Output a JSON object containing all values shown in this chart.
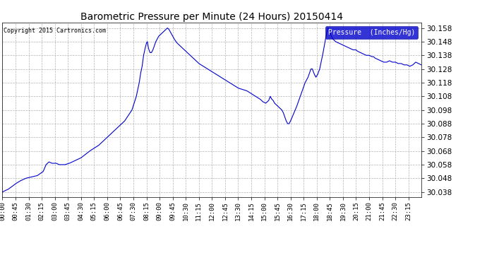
{
  "title": "Barometric Pressure per Minute (24 Hours) 20150414",
  "copyright": "Copyright 2015 Cartronics.com",
  "legend_label": "Pressure  (Inches/Hg)",
  "line_color": "#0000cc",
  "bg_color": "#ffffff",
  "plot_bg_color": "#ffffff",
  "grid_color": "#aaaaaa",
  "ylim": [
    30.034,
    30.162
  ],
  "yticks": [
    30.038,
    30.048,
    30.058,
    30.068,
    30.078,
    30.088,
    30.098,
    30.108,
    30.118,
    30.128,
    30.138,
    30.148,
    30.158
  ],
  "xtick_labels": [
    "00:00",
    "00:45",
    "01:30",
    "02:15",
    "03:00",
    "03:45",
    "04:30",
    "05:15",
    "06:00",
    "06:45",
    "07:30",
    "08:15",
    "09:00",
    "09:45",
    "10:30",
    "11:15",
    "12:00",
    "12:45",
    "13:30",
    "14:15",
    "15:00",
    "15:45",
    "16:30",
    "17:15",
    "18:00",
    "18:45",
    "19:30",
    "20:15",
    "21:00",
    "21:45",
    "22:30",
    "23:15"
  ],
  "keypoints": [
    [
      0,
      30.038
    ],
    [
      20,
      30.04
    ],
    [
      45,
      30.044
    ],
    [
      60,
      30.046
    ],
    [
      80,
      30.048
    ],
    [
      100,
      30.049
    ],
    [
      120,
      30.05
    ],
    [
      140,
      30.053
    ],
    [
      150,
      30.058
    ],
    [
      160,
      30.06
    ],
    [
      170,
      30.059
    ],
    [
      185,
      30.059
    ],
    [
      195,
      30.058
    ],
    [
      205,
      30.058
    ],
    [
      215,
      30.058
    ],
    [
      230,
      30.059
    ],
    [
      250,
      30.061
    ],
    [
      270,
      30.063
    ],
    [
      300,
      30.068
    ],
    [
      330,
      30.072
    ],
    [
      360,
      30.078
    ],
    [
      390,
      30.084
    ],
    [
      420,
      30.09
    ],
    [
      445,
      30.098
    ],
    [
      460,
      30.108
    ],
    [
      470,
      30.118
    ],
    [
      475,
      30.125
    ],
    [
      480,
      30.13
    ],
    [
      485,
      30.138
    ],
    [
      490,
      30.143
    ],
    [
      495,
      30.147
    ],
    [
      498,
      30.148
    ],
    [
      502,
      30.143
    ],
    [
      507,
      30.14
    ],
    [
      512,
      30.14
    ],
    [
      517,
      30.142
    ],
    [
      522,
      30.145
    ],
    [
      527,
      30.148
    ],
    [
      532,
      30.15
    ],
    [
      537,
      30.152
    ],
    [
      542,
      30.153
    ],
    [
      547,
      30.154
    ],
    [
      552,
      30.155
    ],
    [
      557,
      30.156
    ],
    [
      562,
      30.157
    ],
    [
      567,
      30.158
    ],
    [
      572,
      30.157
    ],
    [
      580,
      30.154
    ],
    [
      590,
      30.15
    ],
    [
      600,
      30.147
    ],
    [
      610,
      30.145
    ],
    [
      620,
      30.143
    ],
    [
      630,
      30.141
    ],
    [
      645,
      30.138
    ],
    [
      660,
      30.135
    ],
    [
      675,
      30.132
    ],
    [
      690,
      30.13
    ],
    [
      705,
      30.128
    ],
    [
      720,
      30.126
    ],
    [
      735,
      30.124
    ],
    [
      750,
      30.122
    ],
    [
      765,
      30.12
    ],
    [
      780,
      30.118
    ],
    [
      795,
      30.116
    ],
    [
      810,
      30.114
    ],
    [
      825,
      30.113
    ],
    [
      840,
      30.112
    ],
    [
      855,
      30.11
    ],
    [
      870,
      30.108
    ],
    [
      885,
      30.106
    ],
    [
      895,
      30.104
    ],
    [
      905,
      30.103
    ],
    [
      915,
      30.105
    ],
    [
      920,
      30.108
    ],
    [
      925,
      30.106
    ],
    [
      930,
      30.105
    ],
    [
      935,
      30.103
    ],
    [
      940,
      30.102
    ],
    [
      945,
      30.101
    ],
    [
      950,
      30.1
    ],
    [
      955,
      30.099
    ],
    [
      960,
      30.098
    ],
    [
      965,
      30.096
    ],
    [
      970,
      30.093
    ],
    [
      975,
      30.09
    ],
    [
      980,
      30.088
    ],
    [
      985,
      30.088
    ],
    [
      990,
      30.09
    ],
    [
      1000,
      30.095
    ],
    [
      1010,
      30.1
    ],
    [
      1020,
      30.106
    ],
    [
      1030,
      30.112
    ],
    [
      1040,
      30.118
    ],
    [
      1050,
      30.122
    ],
    [
      1055,
      30.125
    ],
    [
      1060,
      30.128
    ],
    [
      1065,
      30.128
    ],
    [
      1068,
      30.126
    ],
    [
      1072,
      30.124
    ],
    [
      1077,
      30.122
    ],
    [
      1083,
      30.124
    ],
    [
      1090,
      30.128
    ],
    [
      1095,
      30.133
    ],
    [
      1100,
      30.138
    ],
    [
      1105,
      30.144
    ],
    [
      1110,
      30.15
    ],
    [
      1115,
      30.155
    ],
    [
      1118,
      30.158
    ],
    [
      1122,
      30.157
    ],
    [
      1128,
      30.153
    ],
    [
      1135,
      30.15
    ],
    [
      1145,
      30.148
    ],
    [
      1155,
      30.147
    ],
    [
      1165,
      30.146
    ],
    [
      1175,
      30.145
    ],
    [
      1185,
      30.144
    ],
    [
      1195,
      30.143
    ],
    [
      1205,
      30.142
    ],
    [
      1215,
      30.142
    ],
    [
      1220,
      30.141
    ],
    [
      1230,
      30.14
    ],
    [
      1240,
      30.139
    ],
    [
      1250,
      30.138
    ],
    [
      1260,
      30.138
    ],
    [
      1270,
      30.137
    ],
    [
      1275,
      30.137
    ],
    [
      1280,
      30.136
    ],
    [
      1290,
      30.135
    ],
    [
      1300,
      30.134
    ],
    [
      1310,
      30.133
    ],
    [
      1320,
      30.133
    ],
    [
      1330,
      30.134
    ],
    [
      1340,
      30.133
    ],
    [
      1350,
      30.133
    ],
    [
      1360,
      30.132
    ],
    [
      1370,
      30.132
    ],
    [
      1380,
      30.131
    ],
    [
      1390,
      30.131
    ],
    [
      1400,
      30.13
    ],
    [
      1410,
      30.131
    ],
    [
      1420,
      30.133
    ],
    [
      1430,
      30.132
    ],
    [
      1439,
      30.131
    ]
  ]
}
